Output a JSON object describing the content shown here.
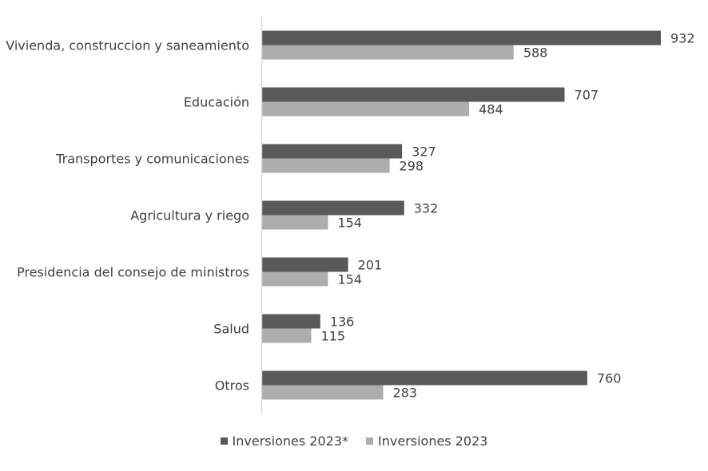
{
  "chart_data": {
    "type": "bar",
    "orientation": "horizontal",
    "categories": [
      "Vivienda, construccion y saneamiento",
      "Educación",
      "Transportes y comunicaciones",
      "Agricultura y riego",
      "Presidencia del consejo de ministros",
      "Salud",
      "Otros"
    ],
    "series": [
      {
        "name": "Inversiones 2023*",
        "values": [
          932,
          707,
          327,
          332,
          201,
          136,
          760
        ],
        "color": "#595959"
      },
      {
        "name": "Inversiones 2023",
        "values": [
          588,
          484,
          298,
          154,
          154,
          115,
          283
        ],
        "color": "#adadad"
      }
    ],
    "xlim": [
      0,
      932
    ],
    "grid": false,
    "legend_position": "bottom",
    "title": "",
    "xlabel": "",
    "ylabel": ""
  }
}
